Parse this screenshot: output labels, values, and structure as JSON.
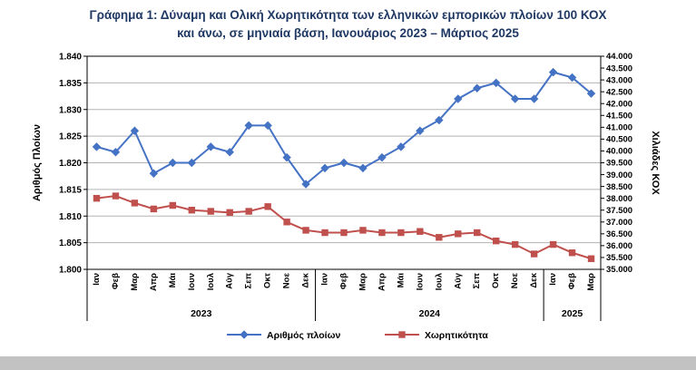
{
  "chart_data": {
    "type": "line",
    "title_lines": [
      "Γράφημα 1: Δύναμη και Ολική Χωρητικότητα των ελληνικών εμπορικών πλοίων 100 ΚΟΧ",
      "και άνω, σε μηνιαία βάση, Ιανουάριος 2023 – Μάρτιος 2025"
    ],
    "categories": [
      "Ιαν",
      "Φεβ",
      "Μαρ",
      "Απρ",
      "Μάι",
      "Ιουν",
      "Ιουλ",
      "Αύγ",
      "Σεπ",
      "Οκτ",
      "Νοε",
      "Δεκ",
      "Ιαν",
      "Φεβ",
      "Μαρ",
      "Απρ",
      "Μάι",
      "Ιουν",
      "Ιουλ",
      "Αύγ",
      "Σεπ",
      "Οκτ",
      "Νοε",
      "Δεκ",
      "Ιαν",
      "Φεβ",
      "Μαρ"
    ],
    "year_groups": [
      {
        "label": "2023",
        "start": 0,
        "end": 11
      },
      {
        "label": "2024",
        "start": 12,
        "end": 23
      },
      {
        "label": "2025",
        "start": 24,
        "end": 26
      }
    ],
    "series": [
      {
        "name": "Αριθμός πλοίων",
        "axis": "left",
        "color": "#4472C4",
        "marker": "diamond",
        "values": [
          1823,
          1822,
          1826,
          1818,
          1820,
          1820,
          1823,
          1822,
          1827,
          1827,
          1821,
          1816,
          1819,
          1820,
          1819,
          1821,
          1823,
          1826,
          1828,
          1832,
          1834,
          1835,
          1832,
          1832,
          1837,
          1836,
          1833
        ]
      },
      {
        "name": "Χωρητικότητα",
        "axis": "right",
        "color": "#C0504D",
        "marker": "square",
        "values": [
          38000,
          38100,
          37800,
          37550,
          37700,
          37500,
          37450,
          37400,
          37450,
          37650,
          37000,
          36650,
          36550,
          36550,
          36650,
          36550,
          36550,
          36600,
          36350,
          36500,
          36550,
          36200,
          36050,
          35650,
          36050,
          35700,
          35450
        ]
      }
    ],
    "left_axis": {
      "title": "Αριθμός Πλοίων",
      "min": 1800,
      "max": 1840,
      "step": 5,
      "tick_labels": [
        "1.800",
        "1.805",
        "1.810",
        "1.815",
        "1.820",
        "1.825",
        "1.830",
        "1.835",
        "1.840"
      ]
    },
    "right_axis": {
      "title": "Χιλιάδες ΚΟΧ",
      "min": 35000,
      "max": 44000,
      "step": 500,
      "tick_labels": [
        "35.000",
        "35.500",
        "36.000",
        "36.500",
        "37.000",
        "37.500",
        "38.000",
        "38.500",
        "39.000",
        "39.500",
        "40.000",
        "40.500",
        "41.000",
        "41.500",
        "42.000",
        "42.500",
        "43.000",
        "43.500",
        "44.000"
      ]
    },
    "grid": "horizontal",
    "legend_position": "bottom",
    "colors": {
      "gridline": "#B3B3B3",
      "axis": "#000000",
      "title_text": "#1F3864",
      "bottom_bar": "#C2C2C2"
    }
  }
}
